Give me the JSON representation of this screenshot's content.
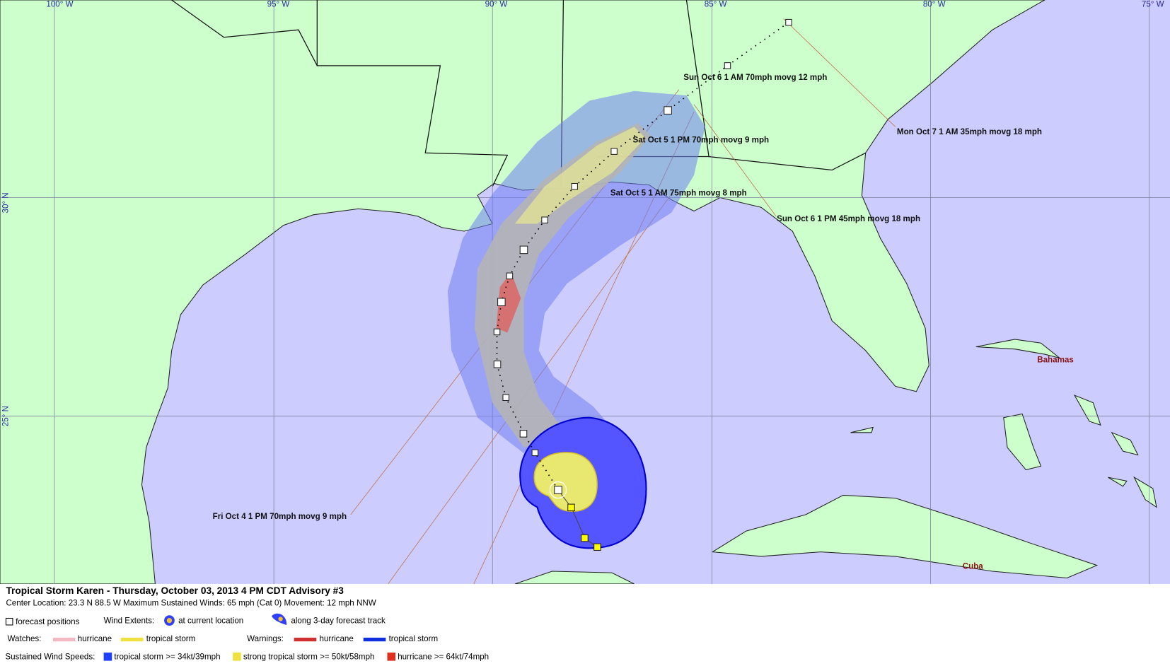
{
  "map": {
    "lon_labels": [
      "100° W",
      "95° W",
      "90° W",
      "85° W",
      "80° W",
      "75° W"
    ],
    "lat_labels": [
      "30° N",
      "25° N"
    ],
    "forecast_labels": [
      "Sun Oct 6 1 AM 70mph movg 12 mph",
      "Sat Oct 5 1 PM 70mph movg 9 mph",
      "Mon Oct 7 1 AM 35mph movg 18 mph",
      "Sat Oct 5 1 AM 75mph movg 8 mph",
      "Sun Oct 6 1 PM 45mph movg 18 mph",
      "Fri Oct 4 1 PM 70mph movg 9 mph"
    ],
    "places": [
      "Bahamas",
      "Cuba"
    ]
  },
  "legend": {
    "title": "Tropical Storm Karen  -  Thursday, October 03, 2013  4 PM CDT   Advisory #3",
    "details": "Center Location: 23.3 N  88.5 W   Maximum Sustained Winds: 65 mph (Cat 0)  Movement: 12 mph NNW",
    "forecast_positions": "forecast positions",
    "wind_extents": "Wind Extents:",
    "at_current": "at current location",
    "along_track": "along 3-day forecast track",
    "watches": "Watches:",
    "watch_hurricane": "hurricane",
    "watch_ts": "tropical storm",
    "warnings": "Warnings:",
    "warn_hurricane": "hurricane",
    "warn_ts": "tropical storm",
    "speeds": "Sustained Wind Speeds:",
    "speed_ts": "tropical storm >= 34kt/39mph",
    "speed_sts": "strong tropical storm >= 50kt/58mph",
    "speed_h": "hurricane >= 64kt/74mph"
  }
}
